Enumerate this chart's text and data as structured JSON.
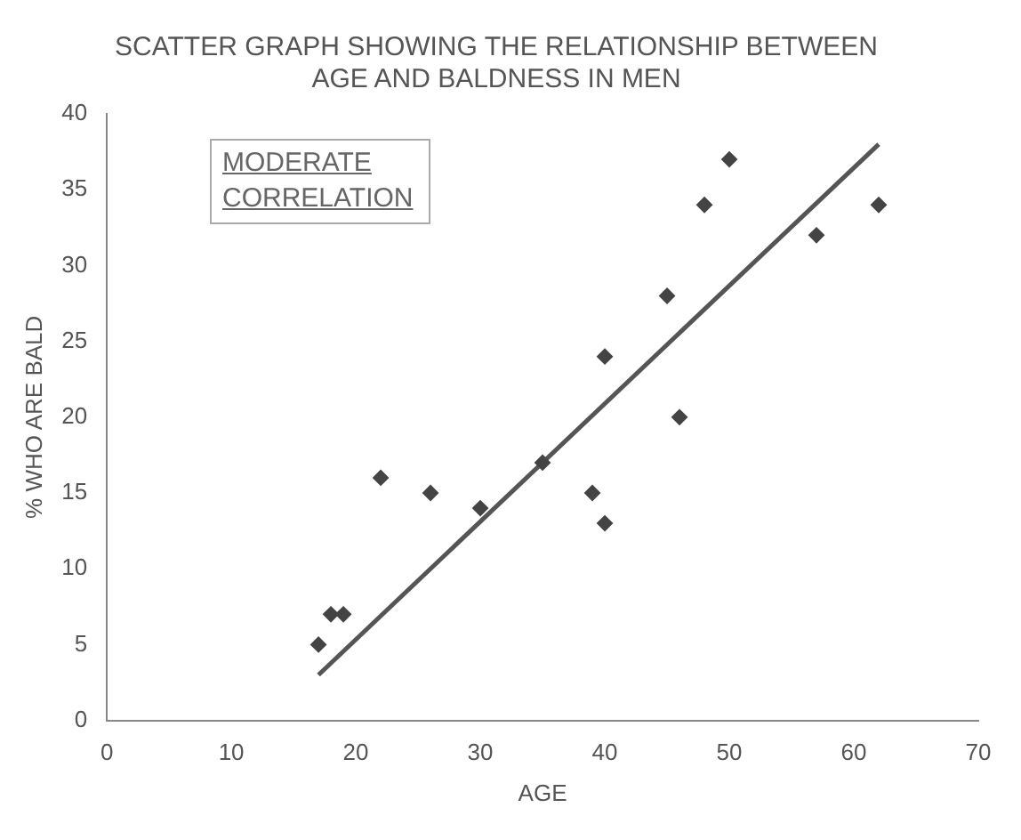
{
  "chart_data": {
    "type": "scatter",
    "title": "SCATTER GRAPH SHOWING THE RELATIONSHIP BETWEEN AGE AND BALDNESS IN MEN",
    "xlabel": "AGE",
    "ylabel": "% WHO ARE BALD",
    "xlim": [
      0,
      70
    ],
    "xticks": [
      0,
      10,
      20,
      30,
      40,
      50,
      60,
      70
    ],
    "ylim": [
      0,
      40
    ],
    "yticks": [
      0,
      5,
      10,
      15,
      20,
      25,
      30,
      35,
      40
    ],
    "grid": false,
    "legend": false,
    "annotations": [
      "MODERATE CORRELATION"
    ],
    "series": [
      {
        "color": "#444444",
        "marker": "diamond",
        "x": [
          17,
          18,
          19,
          22,
          26,
          30,
          35,
          39,
          40,
          40,
          45,
          46,
          48,
          50,
          57,
          62
        ],
        "values": [
          5,
          7,
          7,
          16,
          15,
          14,
          17,
          15,
          13,
          24,
          28,
          20,
          34,
          37,
          32,
          34
        ]
      },
      {
        "type": "line",
        "color": "#555555",
        "x": [
          17,
          62
        ],
        "values": [
          3,
          38
        ]
      }
    ]
  }
}
